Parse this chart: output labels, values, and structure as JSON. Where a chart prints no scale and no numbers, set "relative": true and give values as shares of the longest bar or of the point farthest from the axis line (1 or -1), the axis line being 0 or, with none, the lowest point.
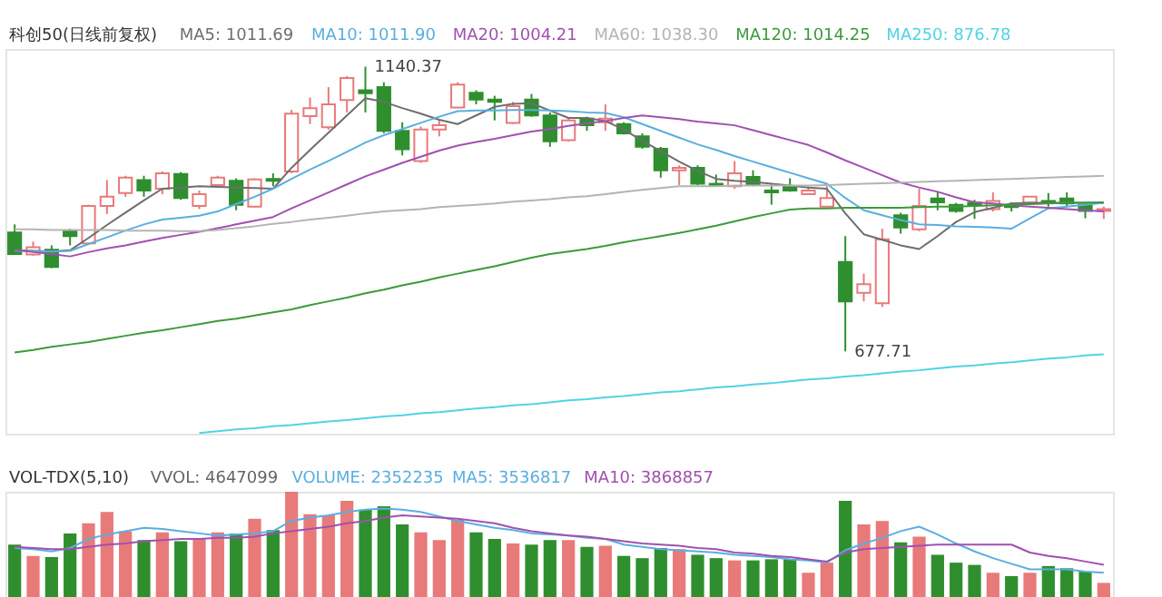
{
  "chart_data": [
    {
      "type": "candlestick",
      "title": "科创50(日线前复权)",
      "categories": [
        null,
        null,
        null,
        null,
        null,
        null,
        null,
        null,
        null,
        null,
        null,
        null,
        null,
        null,
        null,
        null,
        null,
        null,
        null,
        null,
        null,
        null,
        null,
        null,
        null,
        null,
        null,
        null,
        null,
        null,
        null,
        null,
        null,
        null,
        null,
        null,
        null,
        null,
        null,
        null,
        null,
        null,
        null,
        null,
        null,
        null,
        null,
        null,
        null,
        null,
        null,
        null,
        null,
        null,
        null,
        null,
        null,
        null,
        null,
        null
      ],
      "ohlc": [
        [
          871,
          884,
          835,
          836
        ],
        [
          835,
          856,
          833,
          847
        ],
        [
          843,
          850,
          813,
          815
        ],
        [
          873,
          877,
          850,
          865
        ],
        [
          853,
          916,
          852,
          914
        ],
        [
          914,
          956,
          901,
          929
        ],
        [
          935,
          963,
          929,
          960
        ],
        [
          956,
          963,
          929,
          939
        ],
        [
          942,
          970,
          933,
          967
        ],
        [
          966,
          969,
          924,
          927
        ],
        [
          914,
          939,
          909,
          933
        ],
        [
          948,
          963,
          946,
          960
        ],
        [
          955,
          959,
          907,
          916
        ],
        [
          913,
          959,
          912,
          957
        ],
        [
          958,
          967,
          946,
          955
        ],
        [
          970,
          1070,
          967,
          1064
        ],
        [
          1060,
          1090,
          1047,
          1073
        ],
        [
          1042,
          1107,
          1038,
          1079
        ],
        [
          1086,
          1125,
          1066,
          1122
        ],
        [
          1102,
          1140.37,
          1066,
          1097
        ],
        [
          1107,
          1115,
          1032,
          1036
        ],
        [
          1036,
          1050,
          996,
          1006
        ],
        [
          987,
          1043,
          984,
          1038
        ],
        [
          1038,
          1053,
          1027,
          1045
        ],
        [
          1074,
          1115,
          1073,
          1111
        ],
        [
          1098,
          1102,
          1079,
          1087
        ],
        [
          1087,
          1093,
          1053,
          1083
        ],
        [
          1049,
          1083,
          1047,
          1076
        ],
        [
          1087,
          1096,
          1059,
          1061
        ],
        [
          1061,
          1066,
          1010,
          1019
        ],
        [
          1021,
          1057,
          1019,
          1053
        ],
        [
          1056,
          1059,
          1036,
          1045
        ],
        [
          1050,
          1079,
          1036,
          1056
        ],
        [
          1047,
          1050,
          1030,
          1032
        ],
        [
          1027,
          1032,
          1007,
          1010
        ],
        [
          1007,
          1010,
          960,
          972
        ],
        [
          972,
          980,
          948,
          976
        ],
        [
          976,
          980,
          948,
          950
        ],
        [
          950,
          965,
          946,
          948
        ],
        [
          946,
          987,
          942,
          967
        ],
        [
          961,
          972,
          946,
          948
        ],
        [
          939,
          950,
          916,
          936
        ],
        [
          946,
          959,
          937,
          939
        ],
        [
          933,
          946,
          933,
          939
        ],
        [
          913,
          946,
          912,
          927
        ],
        [
          823,
          865,
          677.71,
          759
        ],
        [
          773,
          804,
          759,
          787
        ],
        [
          756,
          877,
          750,
          860
        ],
        [
          899,
          903,
          869,
          879
        ],
        [
          876,
          942,
          873,
          914
        ],
        [
          926,
          936,
          907,
          920
        ],
        [
          916,
          919,
          903,
          906
        ],
        [
          919,
          924,
          893,
          915
        ],
        [
          909,
          936,
          905,
          922
        ],
        [
          915,
          920,
          905,
          912
        ],
        [
          919,
          930,
          916,
          929
        ],
        [
          922,
          935,
          913,
          919
        ],
        [
          926,
          936,
          912,
          918
        ],
        [
          916,
          920,
          894,
          906
        ],
        [
          906,
          913,
          893,
          909
        ]
      ],
      "ylim": [
        544,
        1169
      ],
      "tick_labels": false,
      "series": [
        {
          "name": "MA5: 1011.69",
          "type": "line",
          "color": "#6e6e6e",
          "values": [
            842,
            841,
            840,
            842,
            862,
            883,
            903,
            923,
            942,
            944,
            946,
            945,
            944,
            943,
            942,
            976,
            1005,
            1033,
            1061,
            1089,
            1083,
            1073,
            1064,
            1054,
            1047,
            1061,
            1075,
            1080,
            1081,
            1069,
            1057,
            1057,
            1052,
            1038,
            1020,
            1003,
            986,
            971,
            958,
            955,
            953,
            950,
            947,
            944,
            942,
            902,
            868,
            859,
            850,
            844,
            865,
            888,
            904,
            911,
            918,
            919,
            919,
            919,
            919,
            919
          ]
        },
        {
          "name": "MA10: 1011.90",
          "type": "line",
          "color": "#5aaee0",
          "values": [
            841,
            841,
            840,
            841,
            852,
            863,
            874,
            884,
            892,
            895,
            898,
            905,
            917,
            929,
            942,
            958,
            973,
            987,
            1002,
            1017,
            1029,
            1039,
            1049,
            1059,
            1068,
            1069,
            1069,
            1070,
            1070,
            1069,
            1068,
            1066,
            1065,
            1058,
            1047,
            1036,
            1025,
            1014,
            1005,
            995,
            986,
            977,
            968,
            959,
            950,
            927,
            907,
            899,
            891,
            884,
            883,
            881,
            880,
            879,
            877,
            894,
            910,
            913,
            916,
            919
          ]
        },
        {
          "name": "MA20: 1004.21",
          "type": "line",
          "color": "#a150b0",
          "values": [
            843,
            839,
            836,
            832,
            839,
            845,
            850,
            856,
            862,
            867,
            872,
            878,
            884,
            890,
            896,
            910,
            923,
            936,
            949,
            962,
            973,
            984,
            994,
            1004,
            1012,
            1018,
            1023,
            1029,
            1035,
            1039,
            1044,
            1048,
            1052,
            1057,
            1061,
            1058,
            1055,
            1051,
            1048,
            1045,
            1037,
            1029,
            1021,
            1013,
            1001,
            988,
            976,
            964,
            952,
            944,
            937,
            928,
            920,
            918,
            915,
            913,
            911,
            909,
            907,
            905
          ]
        },
        {
          "name": "MA60: 1038.30",
          "type": "line",
          "color": "#b4b4b4",
          "values": [
            876,
            876,
            875,
            875,
            875,
            875,
            874,
            874,
            874,
            873,
            873,
            875,
            878,
            881,
            885,
            888,
            892,
            895,
            898,
            902,
            905,
            907,
            909,
            912,
            914,
            916,
            918,
            921,
            923,
            925,
            928,
            930,
            933,
            937,
            940,
            943,
            946,
            946,
            946,
            947,
            947,
            947,
            947,
            947,
            948,
            949,
            950,
            951,
            952,
            953,
            954,
            955,
            956,
            957,
            958,
            959,
            960,
            961,
            962,
            963
          ]
        },
        {
          "name": "MA120: 1014.25",
          "type": "line",
          "color": "#3c9a3c",
          "values": [
            676,
            680,
            685,
            689,
            693,
            698,
            703,
            708,
            712,
            717,
            722,
            727,
            731,
            736,
            741,
            746,
            753,
            759,
            765,
            772,
            778,
            785,
            791,
            798,
            804,
            810,
            816,
            823,
            830,
            836,
            840,
            844,
            849,
            855,
            860,
            865,
            870,
            876,
            882,
            889,
            896,
            902,
            908,
            910,
            910,
            911,
            911,
            911,
            911,
            912,
            913,
            913,
            914,
            915,
            916,
            917,
            918,
            919,
            919,
            920
          ]
        },
        {
          "name": "MA250: 876.78",
          "type": "line",
          "color": "#4fd4e4",
          "values": [
            null,
            null,
            null,
            null,
            null,
            null,
            null,
            null,
            null,
            null,
            545,
            548,
            551,
            553,
            556,
            558,
            561,
            564,
            566,
            569,
            572,
            574,
            577,
            579,
            582,
            585,
            587,
            590,
            592,
            595,
            598,
            600,
            603,
            605,
            608,
            611,
            613,
            616,
            619,
            621,
            624,
            626,
            629,
            632,
            634,
            637,
            639,
            642,
            645,
            647,
            650,
            653,
            655,
            658,
            660,
            663,
            666,
            668,
            671,
            673
          ]
        }
      ],
      "annotations": [
        "1140.37",
        "677.71"
      ]
    },
    {
      "type": "bar",
      "title": "VOL-TDX(5,10)",
      "relative": true,
      "categories": [
        null,
        null,
        null,
        null,
        null,
        null,
        null,
        null,
        null,
        null,
        null,
        null,
        null,
        null,
        null,
        null,
        null,
        null,
        null,
        null,
        null,
        null,
        null,
        null,
        null,
        null,
        null,
        null,
        null,
        null,
        null,
        null,
        null,
        null,
        null,
        null,
        null,
        null,
        null,
        null,
        null,
        null,
        null,
        null,
        null,
        null,
        null,
        null,
        null,
        null,
        null,
        null,
        null,
        null,
        null,
        null,
        null,
        null,
        null,
        null
      ],
      "annotations": [
        "VVOL: 4647099",
        "VOLUME: 2352235"
      ],
      "series": [
        {
          "type": "bar",
          "colors": [
            "#2f8f2f",
            "#e87a7a",
            "#2f8f2f",
            "#2f8f2f",
            "#e87a7a",
            "#e87a7a",
            "#e87a7a",
            "#2f8f2f",
            "#e87a7a",
            "#2f8f2f",
            "#e87a7a",
            "#e87a7a",
            "#2f8f2f",
            "#e87a7a",
            "#2f8f2f",
            "#e87a7a",
            "#e87a7a",
            "#e87a7a",
            "#e87a7a",
            "#2f8f2f",
            "#2f8f2f",
            "#2f8f2f",
            "#e87a7a",
            "#e87a7a",
            "#e87a7a",
            "#2f8f2f",
            "#2f8f2f",
            "#e87a7a",
            "#2f8f2f",
            "#2f8f2f",
            "#e87a7a",
            "#2f8f2f",
            "#e87a7a",
            "#2f8f2f",
            "#2f8f2f",
            "#2f8f2f",
            "#e87a7a",
            "#2f8f2f",
            "#2f8f2f",
            "#e87a7a",
            "#2f8f2f",
            "#2f8f2f",
            "#2f8f2f",
            "#e87a7a",
            "#e87a7a",
            "#2f8f2f",
            "#e87a7a",
            "#e87a7a",
            "#2f8f2f",
            "#e87a7a",
            "#2f8f2f",
            "#2f8f2f",
            "#2f8f2f",
            "#e87a7a",
            "#2f8f2f",
            "#e87a7a",
            "#2f8f2f",
            "#2f8f2f",
            "#2f8f2f",
            "#e87a7a"
          ],
          "values": [
            0.53,
            0.43,
            0.42,
            0.63,
            0.72,
            0.82,
            0.65,
            0.57,
            0.64,
            0.56,
            0.58,
            0.64,
            0.63,
            0.76,
            0.66,
            1,
            0.8,
            0.79,
            0.92,
            0.84,
            0.87,
            0.71,
            0.64,
            0.57,
            0.75,
            0.64,
            0.58,
            0.54,
            0.53,
            0.57,
            0.57,
            0.51,
            0.52,
            0.43,
            0.41,
            0.5,
            0.49,
            0.44,
            0.41,
            0.39,
            0.39,
            0.4,
            0.4,
            0.28,
            0.37,
            0.92,
            0.71,
            0.74,
            0.55,
            0.6,
            0.44,
            0.37,
            0.35,
            0.28,
            0.25,
            0.28,
            0.34,
            0.32,
            0.29,
            0.19
          ]
        },
        {
          "name": "MA5: 3536817",
          "type": "line",
          "color": "#5aaee0",
          "values": [
            0.5,
            0.49,
            0.47,
            0.5,
            0.58,
            0.62,
            0.65,
            0.68,
            0.67,
            0.65,
            0.63,
            0.61,
            0.62,
            0.63,
            0.65,
            0.74,
            0.77,
            0.79,
            0.82,
            0.84,
            0.85,
            0.84,
            0.82,
            0.78,
            0.74,
            0.71,
            0.68,
            0.66,
            0.63,
            0.62,
            0.61,
            0.59,
            0.58,
            0.53,
            0.51,
            0.49,
            0.48,
            0.47,
            0.46,
            0.44,
            0.43,
            0.42,
            0.4,
            0.39,
            0.37,
            0.48,
            0.54,
            0.59,
            0.65,
            0.69,
            0.62,
            0.54,
            0.47,
            0.41,
            0.36,
            0.31,
            0.31,
            0.31,
            0.29,
            0.28
          ]
        },
        {
          "name": "MA10: 3868857",
          "type": "line",
          "color": "#a150b0",
          "values": [
            0.51,
            0.5,
            0.49,
            0.49,
            0.51,
            0.53,
            0.54,
            0.56,
            0.57,
            0.58,
            0.58,
            0.59,
            0.59,
            0.6,
            0.63,
            0.65,
            0.67,
            0.69,
            0.72,
            0.74,
            0.77,
            0.79,
            0.78,
            0.77,
            0.76,
            0.74,
            0.72,
            0.68,
            0.65,
            0.63,
            0.61,
            0.6,
            0.58,
            0.56,
            0.54,
            0.53,
            0.52,
            0.5,
            0.49,
            0.46,
            0.45,
            0.43,
            0.42,
            0.4,
            0.38,
            0.46,
            0.49,
            0.5,
            0.51,
            0.52,
            0.53,
            0.53,
            0.53,
            0.53,
            0.53,
            0.46,
            0.43,
            0.41,
            0.38,
            0.35
          ]
        }
      ]
    }
  ]
}
